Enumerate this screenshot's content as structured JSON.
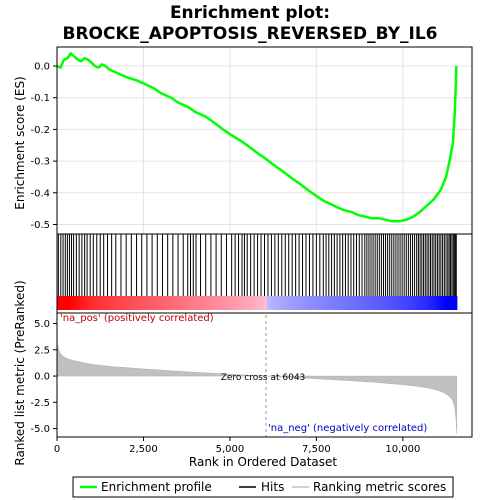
{
  "chart_data": {
    "type": "line",
    "title": "Enrichment plot: BROCKE_APOPTOSIS_REVERSED_BY_IL6",
    "title_lines": [
      "Enrichment plot:",
      "BROCKE_APOPTOSIS_REVERSED_BY_IL6"
    ],
    "xlabel": "Rank in Ordered Dataset",
    "xlim": [
      0,
      12000
    ],
    "x_ticks": [
      0,
      2500,
      5000,
      7500,
      10000
    ],
    "x_tick_labels": [
      "0",
      "2,500",
      "5,000",
      "7,500",
      "10,000"
    ],
    "panels": {
      "enrichment": {
        "ylabel": "Enrichment score (ES)",
        "ylim": [
          -0.53,
          0.06
        ],
        "y_ticks": [
          0.0,
          -0.1,
          -0.2,
          -0.3,
          -0.4,
          -0.5
        ],
        "y_tick_labels": [
          "0.0",
          "-0.1",
          "-0.2",
          "-0.3",
          "-0.4",
          "-0.5"
        ],
        "series": [
          {
            "name": "Enrichment profile",
            "color": "#00ff00",
            "x": [
              0,
              100,
              200,
              300,
              400,
              500,
              600,
              700,
              800,
              900,
              1000,
              1100,
              1200,
              1300,
              1400,
              1500,
              1700,
              2000,
              2300,
              2500,
              2800,
              3000,
              3300,
              3500,
              3800,
              4000,
              4300,
              4500,
              4800,
              5000,
              5300,
              5500,
              5800,
              6000,
              6300,
              6500,
              6800,
              7000,
              7300,
              7500,
              7700,
              7900,
              8100,
              8300,
              8500,
              8700,
              8900,
              9100,
              9300,
              9500,
              9700,
              9900,
              10100,
              10300,
              10500,
              10700,
              10900,
              11100,
              11250,
              11350,
              11450,
              11500,
              11530,
              11550
            ],
            "y": [
              0.0,
              -0.005,
              0.02,
              0.025,
              0.04,
              0.03,
              0.02,
              0.015,
              0.025,
              0.02,
              0.01,
              0.0,
              -0.005,
              0.005,
              0.0,
              -0.01,
              -0.02,
              -0.035,
              -0.045,
              -0.055,
              -0.07,
              -0.085,
              -0.1,
              -0.115,
              -0.13,
              -0.145,
              -0.16,
              -0.175,
              -0.2,
              -0.215,
              -0.235,
              -0.25,
              -0.275,
              -0.29,
              -0.315,
              -0.33,
              -0.355,
              -0.37,
              -0.395,
              -0.41,
              -0.425,
              -0.435,
              -0.445,
              -0.455,
              -0.46,
              -0.47,
              -0.475,
              -0.48,
              -0.48,
              -0.485,
              -0.49,
              -0.49,
              -0.485,
              -0.475,
              -0.46,
              -0.44,
              -0.42,
              -0.39,
              -0.35,
              -0.3,
              -0.24,
              -0.15,
              -0.07,
              0.0
            ]
          }
        ]
      },
      "hits": {
        "series_name": "Hits",
        "positions": [
          40,
          110,
          175,
          240,
          300,
          360,
          420,
          480,
          560,
          640,
          720,
          800,
          870,
          960,
          1050,
          1150,
          1250,
          1350,
          1460,
          1580,
          1700,
          1850,
          2000,
          2150,
          2300,
          2450,
          2600,
          2750,
          2900,
          3050,
          3200,
          3350,
          3500,
          3650,
          3780,
          3860,
          3940,
          4020,
          4150,
          4300,
          4450,
          4600,
          4750,
          4900,
          5050,
          5150,
          5250,
          5350,
          5420,
          5500,
          5600,
          5700,
          5800,
          5900,
          6000,
          6100,
          6200,
          6300,
          6400,
          6500,
          6600,
          6700,
          6800,
          6900,
          7000,
          7100,
          7200,
          7300,
          7400,
          7500,
          7600,
          7700,
          7780,
          7860,
          7940,
          8020,
          8100,
          8180,
          8260,
          8340,
          8420,
          8500,
          8580,
          8660,
          8740,
          8820,
          8900,
          8960,
          9020,
          9080,
          9140,
          9200,
          9260,
          9320,
          9380,
          9440,
          9500,
          9560,
          9620,
          9680,
          9740,
          9800,
          9860,
          9920,
          9980,
          10040,
          10100,
          10160,
          10220,
          10280,
          10340,
          10400,
          10450,
          10500,
          10550,
          10600,
          10650,
          10700,
          10750,
          10800,
          10850,
          10900,
          10950,
          11000,
          11050,
          11100,
          11150,
          11200,
          11250,
          11300,
          11340,
          11380,
          11420,
          11460,
          11490,
          11520,
          11545
        ]
      },
      "ranking": {
        "ylabel": "Ranked list metric (PreRanked)",
        "ylim": [
          -5.8,
          6.0
        ],
        "y_ticks": [
          5.0,
          2.5,
          0.0,
          -2.5,
          -5.0
        ],
        "y_tick_labels": [
          "5.0",
          "2.5",
          "0.0",
          "-2.5",
          "-5.0"
        ],
        "series": [
          {
            "name": "Ranking metric scores",
            "color": "#c0c0c0",
            "x": [
              0,
              20,
              60,
              120,
              200,
              300,
              450,
              600,
              800,
              1000,
              1300,
              1600,
              2000,
              2500,
              3000,
              3500,
              4000,
              4500,
              5000,
              5500,
              6043,
              6500,
              7000,
              7500,
              8000,
              8500,
              9000,
              9500,
              10000,
              10400,
              10700,
              11000,
              11200,
              11350,
              11450,
              11500,
              11540,
              11560
            ],
            "y": [
              3.4,
              2.9,
              2.4,
              2.05,
              1.85,
              1.65,
              1.5,
              1.38,
              1.25,
              1.12,
              1.0,
              0.9,
              0.8,
              0.68,
              0.57,
              0.46,
              0.36,
              0.27,
              0.18,
              0.09,
              0.0,
              -0.08,
              -0.17,
              -0.26,
              -0.35,
              -0.45,
              -0.56,
              -0.68,
              -0.82,
              -0.98,
              -1.12,
              -1.35,
              -1.6,
              -1.95,
              -2.4,
              -3.0,
              -4.2,
              -5.5
            ]
          }
        ],
        "annotations": {
          "zero_cross": "Zero cross at 6043",
          "zero_cross_x": 6043,
          "pos_label": "'na_pos' (positively correlated)",
          "neg_label": "'na_neg' (negatively correlated)"
        }
      }
    },
    "legend": {
      "placement": "bottom",
      "entries": [
        {
          "label": "Enrichment profile",
          "color": "#00ff00"
        },
        {
          "label": "Hits",
          "color": "#000000"
        },
        {
          "label": "Ranking metric scores",
          "color": "#c0c0c0"
        }
      ]
    },
    "colors": {
      "positive": "#ff0000",
      "negative": "#0000ff",
      "profile": "#00ff00"
    }
  }
}
